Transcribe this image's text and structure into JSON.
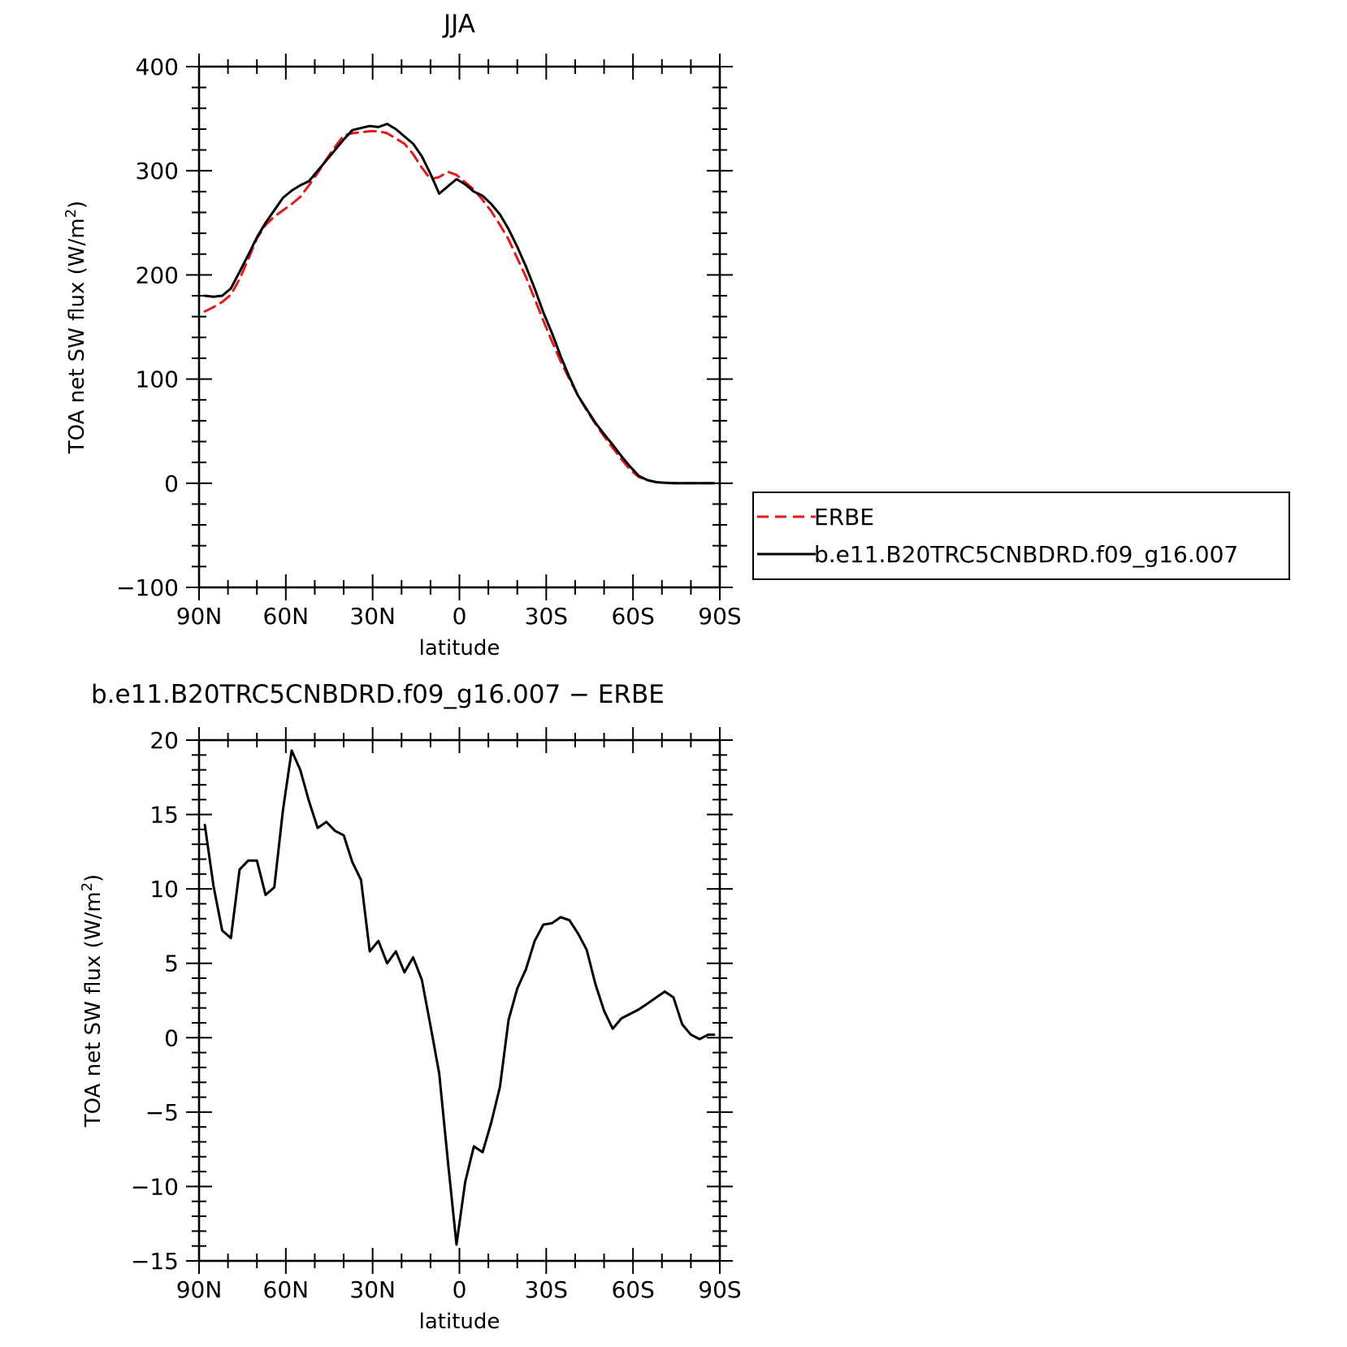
{
  "chart_data": [
    {
      "type": "line",
      "title": "JJA",
      "xlabel": "latitude",
      "ylabel": "TOA net SW flux (W/m",
      "ylabel_sup": "2",
      "ylabel_close": ")",
      "xlim": [
        90,
        -90
      ],
      "ylim": [
        -100,
        400
      ],
      "xticks": [
        {
          "value": 90,
          "label": "90N"
        },
        {
          "value": 60,
          "label": "60N"
        },
        {
          "value": 30,
          "label": "30N"
        },
        {
          "value": 0,
          "label": "0"
        },
        {
          "value": -30,
          "label": "30S"
        },
        {
          "value": -60,
          "label": "60S"
        },
        {
          "value": -90,
          "label": "90S"
        }
      ],
      "yticks": [
        {
          "value": 400,
          "label": "400"
        },
        {
          "value": 300,
          "label": "300"
        },
        {
          "value": 200,
          "label": "200"
        },
        {
          "value": 100,
          "label": "100"
        },
        {
          "value": 0,
          "label": "0"
        },
        {
          "value": -100,
          "label": "−100"
        }
      ],
      "legend": {
        "position": "right",
        "entries": [
          {
            "name": "ERBE",
            "color": "#e31a1c",
            "dash": "dashed"
          },
          {
            "name": "b.e11.B20TRC5CNBDRD.f09_g16.007",
            "color": "#000000",
            "dash": "solid"
          }
        ]
      },
      "series": [
        {
          "name": "ERBE",
          "color": "#e31a1c",
          "dash": "dashed",
          "x": [
            88,
            85,
            82,
            79,
            76,
            73,
            70,
            67,
            64,
            61,
            58,
            55,
            52,
            49,
            46,
            43,
            40,
            37,
            34,
            31,
            28,
            25,
            22,
            19,
            16,
            13,
            10,
            7,
            4,
            1,
            -2,
            -5,
            -8,
            -11,
            -14,
            -17,
            -20,
            -23,
            -26,
            -29,
            -32,
            -35,
            -38,
            -41,
            -44,
            -47,
            -50,
            -53,
            -56,
            -59,
            -62,
            -65,
            -68,
            -71,
            -74,
            -77,
            -80,
            -83,
            -86,
            -88
          ],
          "y": [
            165,
            169,
            174,
            181,
            196,
            215,
            235,
            248,
            256,
            262,
            268,
            275,
            286,
            298,
            311,
            323,
            334,
            336,
            337,
            338,
            338,
            336,
            331,
            326,
            316,
            303,
            292,
            294,
            299,
            296,
            289,
            282,
            272,
            261,
            248,
            234,
            216,
            198,
            177,
            156,
            136,
            117,
            100,
            84,
            70,
            57,
            45,
            34,
            23,
            13,
            6,
            3,
            1,
            0.5,
            0,
            0,
            0,
            0,
            0,
            0
          ]
        },
        {
          "name": "b.e11.B20TRC5CNBDRD.f09_g16.007",
          "color": "#000000",
          "dash": "solid",
          "x": [
            88,
            85,
            82,
            79,
            76,
            73,
            70,
            67,
            64,
            61,
            58,
            55,
            52,
            49,
            46,
            43,
            40,
            37,
            34,
            31,
            28,
            25,
            22,
            19,
            16,
            13,
            10,
            7,
            4,
            1,
            -2,
            -5,
            -8,
            -11,
            -14,
            -17,
            -20,
            -23,
            -26,
            -29,
            -32,
            -35,
            -38,
            -41,
            -44,
            -47,
            -50,
            -53,
            -56,
            -59,
            -62,
            -65,
            -68,
            -71,
            -74,
            -77,
            -80,
            -83,
            -86,
            -88
          ],
          "y": [
            180,
            179,
            180,
            187,
            203,
            219,
            236,
            250,
            262,
            274,
            281,
            286,
            290,
            300,
            310,
            320,
            330,
            339,
            341,
            343,
            342,
            345,
            340,
            333,
            326,
            314,
            297,
            278,
            285,
            292,
            287,
            280,
            276,
            268,
            258,
            244,
            227,
            208,
            187,
            164,
            144,
            122,
            102,
            84,
            71,
            58,
            47,
            37,
            26,
            16,
            7,
            3,
            1,
            0.5,
            0,
            0,
            0,
            0,
            0,
            0
          ]
        }
      ]
    },
    {
      "type": "line",
      "title": "b.e11.B20TRC5CNBDRD.f09_g16.007 − ERBE",
      "xlabel": "latitude",
      "ylabel": "TOA net SW flux (W/m",
      "ylabel_sup": "2",
      "ylabel_close": ")",
      "xlim": [
        90,
        -90
      ],
      "ylim": [
        -15,
        20
      ],
      "xticks": [
        {
          "value": 90,
          "label": "90N"
        },
        {
          "value": 60,
          "label": "60N"
        },
        {
          "value": 30,
          "label": "30N"
        },
        {
          "value": 0,
          "label": "0"
        },
        {
          "value": -30,
          "label": "30S"
        },
        {
          "value": -60,
          "label": "60S"
        },
        {
          "value": -90,
          "label": "90S"
        }
      ],
      "yticks": [
        {
          "value": 20,
          "label": "20"
        },
        {
          "value": 15,
          "label": "15"
        },
        {
          "value": 10,
          "label": "10"
        },
        {
          "value": 5,
          "label": "5"
        },
        {
          "value": 0,
          "label": "0"
        },
        {
          "value": -5,
          "label": "−5"
        },
        {
          "value": -10,
          "label": "−10"
        },
        {
          "value": -15,
          "label": "−15"
        }
      ],
      "series": [
        {
          "color": "#000000",
          "dash": "solid",
          "x": [
            88,
            85,
            82,
            79,
            76,
            73,
            70,
            67,
            64,
            61,
            58,
            55,
            52,
            49,
            46,
            43,
            40,
            37,
            34,
            31,
            28,
            25,
            22,
            19,
            16,
            13,
            10,
            7,
            4,
            1,
            -2,
            -5,
            -8,
            -11,
            -14,
            -17,
            -20,
            -23,
            -26,
            -29,
            -32,
            -35,
            -38,
            -41,
            -44,
            -47,
            -50,
            -53,
            -56,
            -59,
            -62,
            -65,
            -68,
            -71,
            -74,
            -77,
            -80,
            -83,
            -86,
            -88
          ],
          "y": [
            14.3,
            10.2,
            7.2,
            6.7,
            11.3,
            11.9,
            11.9,
            9.6,
            10.1,
            15.3,
            19.3,
            18.0,
            15.9,
            14.1,
            14.5,
            13.9,
            13.6,
            11.8,
            10.6,
            5.8,
            6.5,
            5.0,
            5.8,
            4.4,
            5.4,
            3.9,
            0.8,
            -2.4,
            -8.3,
            -13.9,
            -9.7,
            -7.3,
            -7.7,
            -5.7,
            -3.3,
            1.2,
            3.3,
            4.6,
            6.5,
            7.6,
            7.7,
            8.1,
            7.9,
            7.0,
            5.9,
            3.6,
            1.8,
            0.6,
            1.3,
            1.6,
            1.9,
            2.3,
            2.7,
            3.1,
            2.7,
            0.9,
            0.2,
            -0.1,
            0.2,
            0.2
          ]
        }
      ]
    }
  ]
}
